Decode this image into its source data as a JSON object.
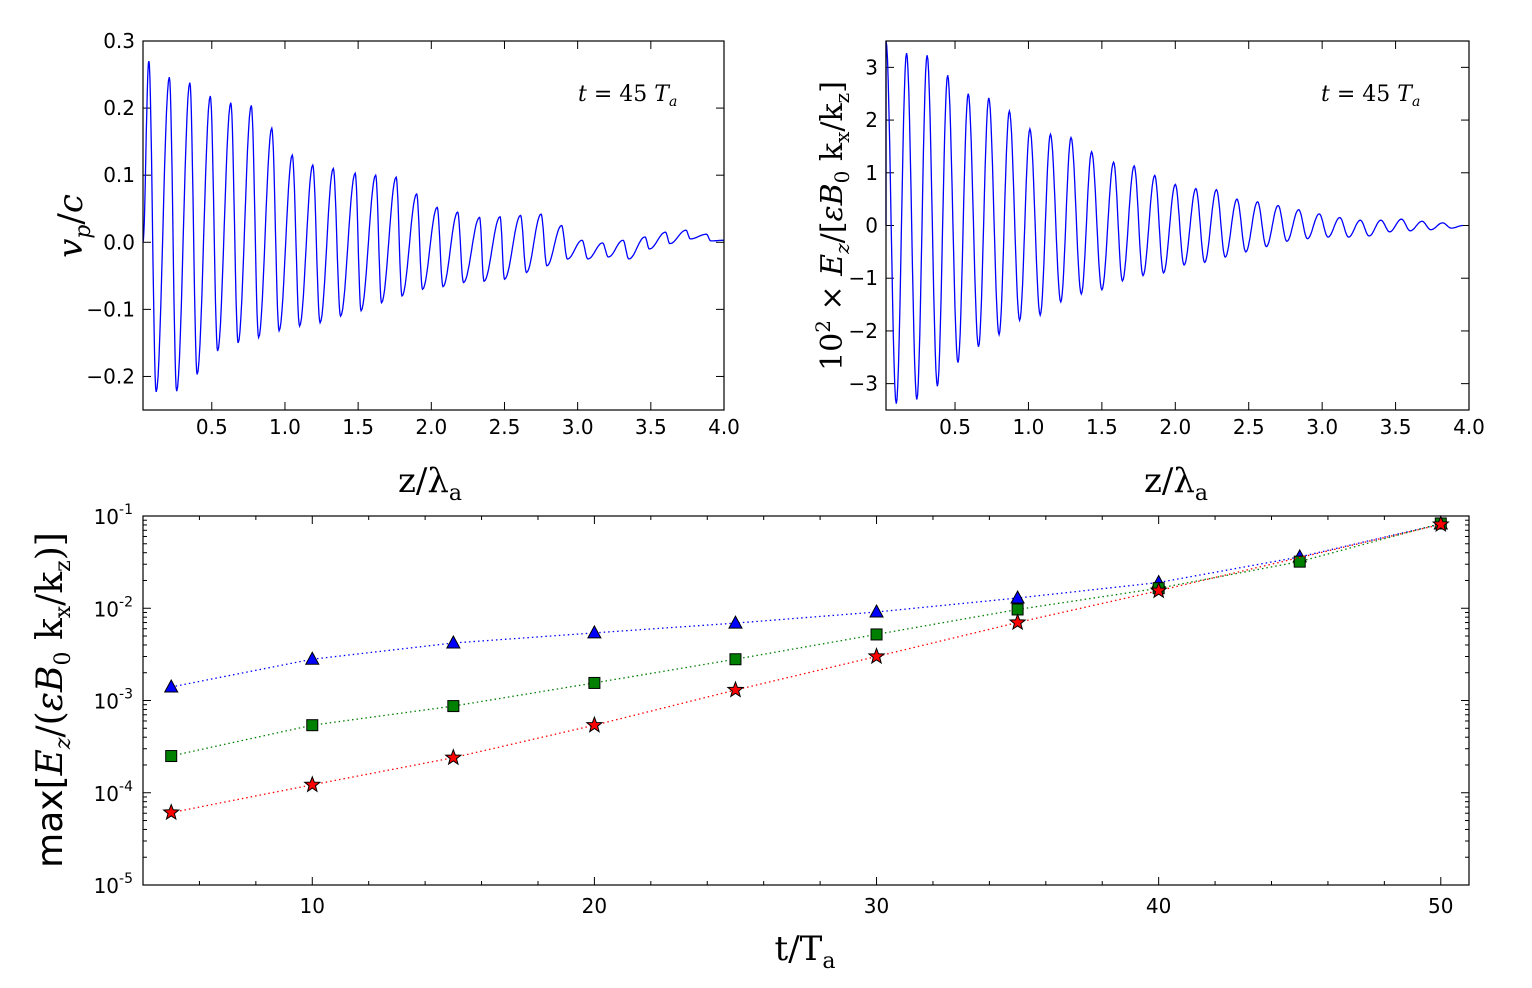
{
  "chart_data": [
    {
      "type": "line",
      "panel": "top-left",
      "title": "",
      "xlabel": "z/λa",
      "ylabel": "vp/c",
      "xlim": [
        0.03,
        4.0
      ],
      "ylim": [
        -0.25,
        0.3
      ],
      "xticks": [
        0.5,
        1.0,
        1.5,
        2.0,
        2.5,
        3.0,
        3.5,
        4.0
      ],
      "xtick_labels": [
        "0.5",
        "1.0",
        "1.5",
        "2.0",
        "2.5",
        "3.0",
        "3.5",
        "4.0"
      ],
      "yticks": [
        -0.2,
        -0.1,
        0.0,
        0.1,
        0.2,
        0.3
      ],
      "ytick_labels": [
        "−0.2",
        "−0.1",
        "0.0",
        "0.1",
        "0.2",
        "0.3"
      ],
      "annotation": "t = 45 Ta",
      "series": [
        {
          "name": "vp/c",
          "color": "#0000ff",
          "period": 0.1425,
          "phase0": 0.03,
          "peaks": [
            [
              0.07,
              0.27
            ],
            [
              0.21,
              0.246
            ],
            [
              0.35,
              0.238
            ],
            [
              0.49,
              0.218
            ],
            [
              0.63,
              0.208
            ],
            [
              0.77,
              0.204
            ],
            [
              0.91,
              0.17
            ],
            [
              1.05,
              0.13
            ],
            [
              1.19,
              0.115
            ],
            [
              1.33,
              0.11
            ],
            [
              1.48,
              0.103
            ],
            [
              1.62,
              0.1
            ],
            [
              1.76,
              0.097
            ],
            [
              1.9,
              0.072
            ],
            [
              2.04,
              0.052
            ],
            [
              2.18,
              0.045
            ],
            [
              2.33,
              0.037
            ],
            [
              2.47,
              0.038
            ],
            [
              2.61,
              0.04
            ],
            [
              2.75,
              0.042
            ],
            [
              2.89,
              0.025
            ],
            [
              3.03,
              0.003
            ],
            [
              3.17,
              -0.001
            ],
            [
              3.31,
              0.003
            ],
            [
              3.46,
              0.008
            ],
            [
              3.6,
              0.015
            ],
            [
              3.74,
              0.018
            ],
            [
              3.88,
              0.012
            ],
            [
              4.0,
              0.003
            ]
          ],
          "troughs": [
            [
              0.12,
              -0.223
            ],
            [
              0.26,
              -0.222
            ],
            [
              0.4,
              -0.197
            ],
            [
              0.54,
              -0.162
            ],
            [
              0.68,
              -0.15
            ],
            [
              0.82,
              -0.142
            ],
            [
              0.96,
              -0.132
            ],
            [
              1.1,
              -0.125
            ],
            [
              1.24,
              -0.12
            ],
            [
              1.38,
              -0.11
            ],
            [
              1.52,
              -0.102
            ],
            [
              1.66,
              -0.09
            ],
            [
              1.8,
              -0.08
            ],
            [
              1.94,
              -0.07
            ],
            [
              2.08,
              -0.066
            ],
            [
              2.22,
              -0.06
            ],
            [
              2.36,
              -0.058
            ],
            [
              2.5,
              -0.055
            ],
            [
              2.65,
              -0.045
            ],
            [
              2.79,
              -0.035
            ],
            [
              2.93,
              -0.025
            ],
            [
              3.07,
              -0.025
            ],
            [
              3.21,
              -0.022
            ],
            [
              3.35,
              -0.025
            ],
            [
              3.49,
              -0.01
            ],
            [
              3.63,
              -0.002
            ],
            [
              3.77,
              0.005
            ],
            [
              3.91,
              0.002
            ]
          ]
        }
      ]
    },
    {
      "type": "line",
      "panel": "top-right",
      "title": "",
      "xlabel": "z/λa",
      "ylabel": "10² × Ez/[εB0 kx/kz]",
      "xlim": [
        0.03,
        4.0
      ],
      "ylim": [
        -3.5,
        3.5
      ],
      "xticks": [
        0.5,
        1.0,
        1.5,
        2.0,
        2.5,
        3.0,
        3.5,
        4.0
      ],
      "xtick_labels": [
        "0.5",
        "1.0",
        "1.5",
        "2.0",
        "2.5",
        "3.0",
        "3.5",
        "4.0"
      ],
      "yticks": [
        -3,
        -2,
        -1,
        0,
        1,
        2,
        3
      ],
      "ytick_labels": [
        "−3",
        "−2",
        "−1",
        "0",
        "1",
        "2",
        "3"
      ],
      "annotation": "t = 45 Ta",
      "series": [
        {
          "name": "Ez",
          "color": "#0000ff",
          "period": 0.1425,
          "phase0": 0.03,
          "peaks": [
            [
              0.03,
              3.5
            ],
            [
              0.17,
              3.27
            ],
            [
              0.31,
              3.23
            ],
            [
              0.45,
              2.85
            ],
            [
              0.59,
              2.5
            ],
            [
              0.73,
              2.42
            ],
            [
              0.87,
              2.17
            ],
            [
              1.01,
              1.83
            ],
            [
              1.15,
              1.73
            ],
            [
              1.29,
              1.67
            ],
            [
              1.43,
              1.4
            ],
            [
              1.58,
              1.2
            ],
            [
              1.72,
              1.13
            ],
            [
              1.86,
              0.95
            ],
            [
              2.0,
              0.78
            ],
            [
              2.14,
              0.7
            ],
            [
              2.28,
              0.68
            ],
            [
              2.42,
              0.5
            ],
            [
              2.56,
              0.45
            ],
            [
              2.7,
              0.38
            ],
            [
              2.84,
              0.3
            ],
            [
              2.98,
              0.22
            ],
            [
              3.12,
              0.15
            ],
            [
              3.26,
              0.1
            ],
            [
              3.4,
              0.1
            ],
            [
              3.54,
              0.12
            ],
            [
              3.68,
              0.08
            ],
            [
              3.82,
              0.05
            ],
            [
              3.96,
              0.0
            ]
          ],
          "troughs": [
            [
              0.1,
              -3.38
            ],
            [
              0.24,
              -3.3
            ],
            [
              0.38,
              -3.05
            ],
            [
              0.52,
              -2.6
            ],
            [
              0.66,
              -2.3
            ],
            [
              0.8,
              -2.07
            ],
            [
              0.94,
              -1.8
            ],
            [
              1.08,
              -1.7
            ],
            [
              1.22,
              -1.45
            ],
            [
              1.36,
              -1.3
            ],
            [
              1.5,
              -1.22
            ],
            [
              1.64,
              -1.05
            ],
            [
              1.78,
              -0.95
            ],
            [
              1.92,
              -0.9
            ],
            [
              2.06,
              -0.75
            ],
            [
              2.2,
              -0.7
            ],
            [
              2.34,
              -0.6
            ],
            [
              2.48,
              -0.5
            ],
            [
              2.62,
              -0.4
            ],
            [
              2.76,
              -0.3
            ],
            [
              2.9,
              -0.25
            ],
            [
              3.04,
              -0.22
            ],
            [
              3.18,
              -0.22
            ],
            [
              3.32,
              -0.2
            ],
            [
              3.46,
              -0.12
            ],
            [
              3.6,
              -0.1
            ],
            [
              3.74,
              -0.08
            ],
            [
              3.88,
              -0.05
            ]
          ]
        }
      ]
    },
    {
      "type": "scatter",
      "panel": "bottom",
      "scale_y": "log",
      "title": "",
      "xlabel": "t/Ta",
      "ylabel": "max[Ez/(εB0 kx/kz)]",
      "xlim": [
        4,
        51
      ],
      "ylim": [
        1e-05,
        0.1
      ],
      "xticks": [
        10,
        20,
        30,
        40,
        50
      ],
      "xtick_labels": [
        "10",
        "20",
        "30",
        "40",
        "50"
      ],
      "yticks": [
        1e-05,
        0.0001,
        0.001,
        0.01,
        0.1
      ],
      "ytick_labels": [
        [
          "10",
          "-5"
        ],
        [
          "10",
          "-4"
        ],
        [
          "10",
          "-3"
        ],
        [
          "10",
          "-2"
        ],
        [
          "10",
          "-1"
        ]
      ],
      "x": [
        5,
        10,
        15,
        20,
        25,
        30,
        35,
        40,
        45,
        50
      ],
      "series": [
        {
          "name": "blue triangles",
          "marker": "triangle",
          "color": "#0000ff",
          "values": [
            0.0014,
            0.0028,
            0.0042,
            0.0054,
            0.0069,
            0.0091,
            0.0129,
            0.019,
            0.036,
            0.082
          ]
        },
        {
          "name": "green squares",
          "marker": "square",
          "color": "#008000",
          "values": [
            0.00025,
            0.00054,
            0.00087,
            0.00155,
            0.0028,
            0.0052,
            0.0097,
            0.0165,
            0.032,
            0.083
          ]
        },
        {
          "name": "red stars",
          "marker": "star",
          "color": "#ff0000",
          "values": [
            6.1e-05,
            0.000122,
            0.00024,
            0.00054,
            0.0013,
            0.003,
            0.007,
            0.0155,
            null,
            0.081
          ]
        }
      ]
    }
  ]
}
